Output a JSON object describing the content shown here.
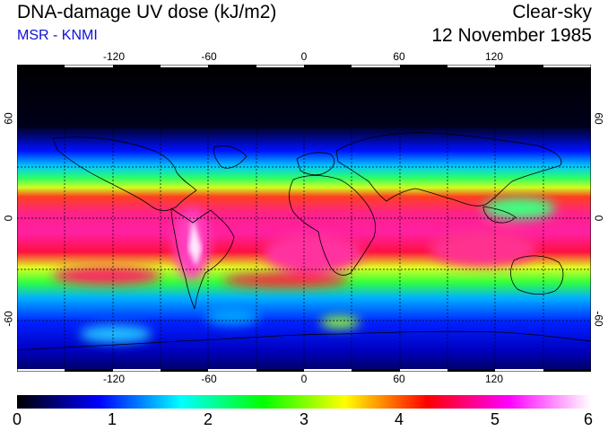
{
  "header": {
    "title": "DNA-damage UV dose (kJ/m2)",
    "subtitle": "MSR - KNMI",
    "condition": "Clear-sky",
    "date": "12 November 1985"
  },
  "map": {
    "lon_ticks": [
      "-120",
      "-60",
      "0",
      "60",
      "120"
    ],
    "lat_ticks_left": [
      "60",
      "0",
      "-60"
    ],
    "lat_ticks_right": [
      "60",
      "0",
      "-60"
    ],
    "lon_range": [
      -180,
      180
    ],
    "lat_range": [
      -90,
      90
    ],
    "grid_spacing_deg": 30,
    "grid": true
  },
  "colorbar": {
    "min": 0,
    "max": 6,
    "tick_labels": [
      "0",
      "1",
      "2",
      "3",
      "4",
      "5",
      "6"
    ],
    "colors": [
      "#000000",
      "#0000ff",
      "#00ffff",
      "#00ff00",
      "#ffff00",
      "#ff0000",
      "#ff00ff",
      "#ffffff"
    ]
  }
}
